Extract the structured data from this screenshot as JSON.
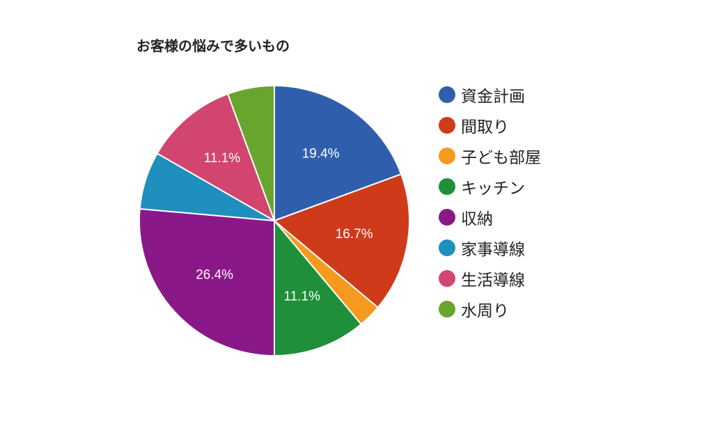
{
  "chart_data": {
    "type": "pie",
    "title": "お客様の悩みで多いもの",
    "legend_position": "right",
    "slices": [
      {
        "name": "資金計画",
        "value": 19.4,
        "label": "19.4%",
        "color": "#2f5fac"
      },
      {
        "name": "間取り",
        "value": 16.7,
        "label": "16.7%",
        "color": "#cf3a1a"
      },
      {
        "name": "子ども部屋",
        "value": 2.8,
        "label": "",
        "color": "#f59a1f"
      },
      {
        "name": "キッチン",
        "value": 11.1,
        "label": "11.1%",
        "color": "#1f8f39"
      },
      {
        "name": "収納",
        "value": 26.4,
        "label": "26.4%",
        "color": "#8a1889"
      },
      {
        "name": "家事導線",
        "value": 6.9,
        "label": "",
        "color": "#1f8fbd"
      },
      {
        "name": "生活導線",
        "value": 11.1,
        "label": "11.1%",
        "color": "#d1456f"
      },
      {
        "name": "水周り",
        "value": 5.6,
        "label": "",
        "color": "#67a52e"
      }
    ]
  }
}
